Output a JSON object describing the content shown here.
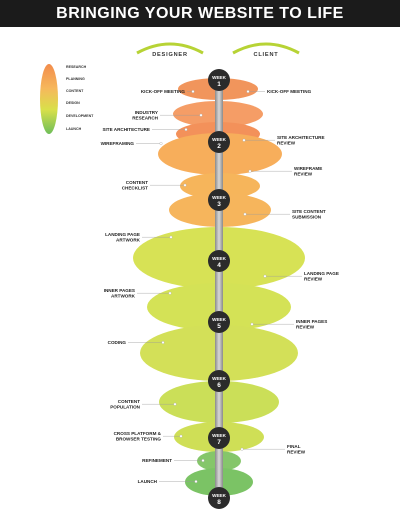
{
  "title": "BRINGING YOUR WEBSITE TO LIFE",
  "headers": {
    "designer": "DESIGNER",
    "client": "CLIENT"
  },
  "legend": [
    {
      "label": "RESEARCH",
      "color": "#f2a25a"
    },
    {
      "label": "PLANNING",
      "color": "#f6b25d"
    },
    {
      "label": "CONTENT",
      "color": "#dde04a"
    },
    {
      "label": "DESIGN",
      "color": "#c5da45"
    },
    {
      "label": "DEVELOPMENT",
      "color": "#a6cf4a"
    },
    {
      "label": "LAUNCH",
      "color": "#6fbe5a"
    }
  ],
  "weeks": [
    {
      "label": "WEEK",
      "num": "1"
    },
    {
      "label": "WEEK",
      "num": "2"
    },
    {
      "label": "WEEK",
      "num": "3"
    },
    {
      "label": "WEEK",
      "num": "4"
    },
    {
      "label": "WEEK",
      "num": "5"
    },
    {
      "label": "WEEK",
      "num": "6"
    },
    {
      "label": "WEEK",
      "num": "7"
    },
    {
      "label": "WEEK",
      "num": "8"
    }
  ],
  "designer_tasks": [
    [
      "KICK-OFF MEETING"
    ],
    [
      "INDUSTRY",
      "RESEARCH"
    ],
    [
      "SITE ARCHITECTURE"
    ],
    [
      "WIREFRAMING"
    ],
    [
      "CONTENT",
      "CHECKLIST"
    ],
    [
      "LANDING PAGE",
      "ARTWORK"
    ],
    [
      "INNER PAGES",
      "ARTWORK"
    ],
    [
      "CODING"
    ],
    [
      "CONTENT",
      "POPULATION"
    ],
    [
      "CROSS PLATFORM &",
      "BROWSER TESTING"
    ],
    [
      "REFINEMENT"
    ],
    [
      "LAUNCH"
    ]
  ],
  "client_tasks": [
    [
      "KICK-OFF MEETING"
    ],
    [
      "SITE ARCHITECTURE",
      "REVIEW"
    ],
    [
      "WIREFRAME",
      "REVIEW"
    ],
    [
      "SITE CONTENT",
      "SUBMISSION"
    ],
    [
      "LANDING PAGE",
      "REVIEW"
    ],
    [
      "INNER PAGES",
      "REVIEW"
    ],
    [
      "FINAL",
      "REVIEW"
    ]
  ],
  "colors": {
    "orange": "#f08a4b",
    "light_orange": "#f6a24a",
    "yellow_green": "#d3df43",
    "green": "#6dbd55",
    "week_circle": "#2b2b2b",
    "header_arc": "#b7d335"
  }
}
